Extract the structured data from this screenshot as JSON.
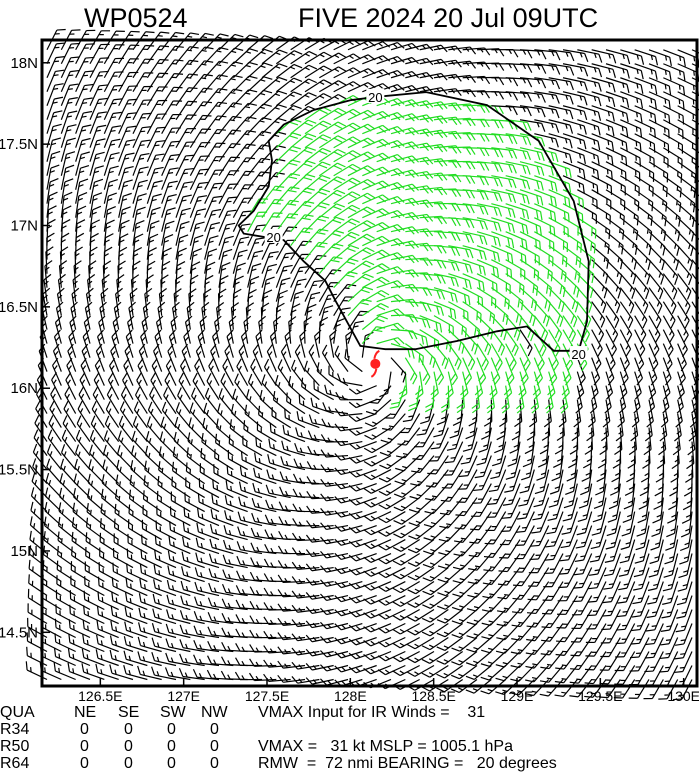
{
  "title": {
    "storm_id": "WP0524",
    "text": "FIVE 2024 20 Jul 09UTC"
  },
  "chart_data": {
    "type": "wind-barb-map",
    "xlim": [
      126.15,
      130.08
    ],
    "ylim": [
      14.17,
      18.14
    ],
    "x_ticks": [
      "126.5E",
      "127E",
      "127.5E",
      "128E",
      "128.5E",
      "129E",
      "129.5E",
      "130E"
    ],
    "x_tick_values": [
      126.5,
      127,
      127.5,
      128,
      128.5,
      129,
      129.5,
      130
    ],
    "y_ticks": [
      "18N",
      "17.5N",
      "17N",
      "16.5N",
      "16N",
      "15.5N",
      "15N",
      "14.5N"
    ],
    "y_tick_values": [
      18,
      17.5,
      17,
      16.5,
      16,
      15.5,
      15,
      14.5
    ],
    "storm_center": {
      "lon": 128.15,
      "lat": 16.15
    },
    "circulation": "cyclonic",
    "contour": {
      "level_label": "20",
      "points": [
        [
          128.0,
          17.77
        ],
        [
          128.15,
          17.79
        ],
        [
          128.455,
          17.82
        ],
        [
          128.82,
          17.74
        ],
        [
          129.13,
          17.52
        ],
        [
          129.34,
          17.15
        ],
        [
          129.43,
          16.78
        ],
        [
          129.42,
          16.41
        ],
        [
          129.37,
          16.23
        ],
        [
          129.22,
          16.23
        ],
        [
          129.06,
          16.38
        ],
        [
          128.88,
          16.35
        ],
        [
          128.64,
          16.29
        ],
        [
          128.39,
          16.24
        ],
        [
          128.21,
          16.24
        ],
        [
          128.06,
          16.26
        ],
        [
          127.91,
          16.54
        ],
        [
          127.85,
          16.66
        ],
        [
          127.72,
          16.78
        ],
        [
          127.6,
          16.91
        ],
        [
          127.54,
          16.92
        ],
        [
          127.36,
          16.95
        ],
        [
          127.33,
          17.0
        ],
        [
          127.42,
          17.09
        ],
        [
          127.51,
          17.24
        ],
        [
          127.53,
          17.4
        ],
        [
          127.51,
          17.52
        ],
        [
          127.6,
          17.62
        ],
        [
          127.78,
          17.71
        ],
        [
          128.0,
          17.77
        ]
      ],
      "label_positions": [
        [
          128.15,
          17.79
        ],
        [
          129.37,
          16.21
        ],
        [
          127.54,
          16.93
        ]
      ]
    },
    "colors": {
      "barb_weak": "#000000",
      "barb_20kt": "#22dd22",
      "contour": "#000000",
      "storm_symbol": "#ff2020"
    }
  },
  "table": {
    "headers": [
      "QUA",
      "NE",
      "SE",
      "SW",
      "NW"
    ],
    "rows": [
      {
        "label": "R34",
        "values": [
          "0",
          "0",
          "0",
          "0"
        ]
      },
      {
        "label": "R50",
        "values": [
          "0",
          "0",
          "0",
          "0"
        ]
      },
      {
        "label": "R64",
        "values": [
          "0",
          "0",
          "0",
          "0"
        ]
      }
    ]
  },
  "info": {
    "line1": "VMAX Input for IR Winds =    31",
    "line2": "VMAX =   31 kt MSLP = 1005.1 hPa",
    "line3": "RMW  =  72 nmi BEARING =   20 degrees"
  }
}
